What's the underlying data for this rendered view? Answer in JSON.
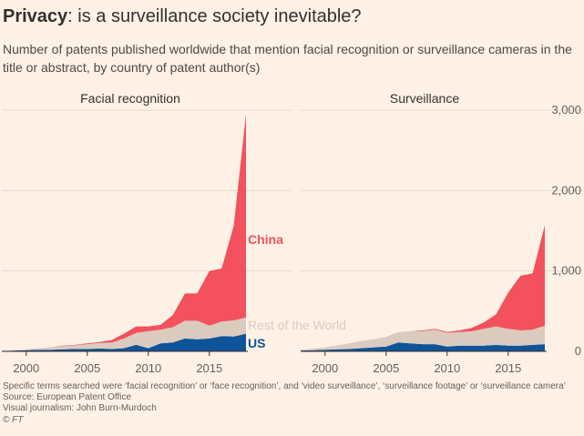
{
  "header": {
    "title_bold": "Privacy",
    "title_rest": ": is a surveillance society inevitable?",
    "subtitle": "Number of patents published worldwide that mention facial recognition or surveillance cameras in the title or abstract, by country of patent author(s)"
  },
  "footer": {
    "note": "Specific terms searched were ‘facial recognition’ or ‘face recognition’, and ‘video surveillance’, ‘surveillance footage’ or ‘surveillance camera’",
    "source": "Source: European Patent Office",
    "credit": "Visual journalism: John Burn-Murdoch",
    "brand": "© FT"
  },
  "colors": {
    "background": "#fff1e5",
    "China": "#f2515d",
    "Rest of the World": "#dbcbbf",
    "US": "#0f5499",
    "grid": "#e6d9ce",
    "axis_text": "#66605c"
  },
  "chart_data": [
    {
      "type": "area",
      "stacked": true,
      "title": "Facial recognition",
      "x": [
        1998,
        1999,
        2000,
        2001,
        2002,
        2003,
        2004,
        2005,
        2006,
        2007,
        2008,
        2009,
        2010,
        2011,
        2012,
        2013,
        2014,
        2015,
        2016,
        2017,
        2018
      ],
      "x_ticks": [
        "2000",
        "2005",
        "2010",
        "2015"
      ],
      "ylim": [
        0,
        3000
      ],
      "y_ticks": [
        0,
        1000,
        2000,
        3000
      ],
      "grid": true,
      "series": [
        {
          "name": "US",
          "values": [
            5,
            10,
            15,
            20,
            20,
            25,
            30,
            30,
            35,
            30,
            40,
            80,
            40,
            100,
            110,
            160,
            150,
            160,
            190,
            185,
            220
          ]
        },
        {
          "name": "Rest of the World",
          "values": [
            3,
            5,
            10,
            20,
            30,
            40,
            45,
            60,
            70,
            80,
            120,
            150,
            210,
            170,
            190,
            220,
            230,
            160,
            180,
            200,
            200
          ]
        },
        {
          "name": "China",
          "values": [
            0,
            0,
            0,
            0,
            0,
            5,
            5,
            10,
            10,
            30,
            60,
            80,
            60,
            60,
            150,
            340,
            340,
            680,
            660,
            1180,
            2530
          ]
        }
      ],
      "labels": [
        "China",
        "Rest of the World",
        "US"
      ]
    },
    {
      "type": "area",
      "stacked": true,
      "title": "Surveillance",
      "x": [
        1998,
        1999,
        2000,
        2001,
        2002,
        2003,
        2004,
        2005,
        2006,
        2007,
        2008,
        2009,
        2010,
        2011,
        2012,
        2013,
        2014,
        2015,
        2016,
        2017,
        2018
      ],
      "x_ticks": [
        "2000",
        "2005",
        "2010",
        "2015"
      ],
      "ylim": [
        0,
        3000
      ],
      "y_ticks": [
        0,
        1000,
        2000,
        3000
      ],
      "y_tick_labels": [
        "0",
        "1,000",
        "2,000",
        "3,000"
      ],
      "y_axis_side": "right",
      "grid": true,
      "series": [
        {
          "name": "US",
          "values": [
            10,
            15,
            20,
            25,
            30,
            40,
            50,
            60,
            110,
            100,
            90,
            90,
            60,
            70,
            70,
            70,
            80,
            70,
            70,
            80,
            90
          ]
        },
        {
          "name": "Rest of the World",
          "values": [
            10,
            20,
            30,
            50,
            70,
            90,
            100,
            120,
            130,
            150,
            160,
            180,
            170,
            170,
            180,
            210,
            230,
            210,
            190,
            190,
            230
          ]
        },
        {
          "name": "China",
          "values": [
            0,
            0,
            0,
            0,
            0,
            0,
            0,
            0,
            0,
            0,
            10,
            10,
            10,
            20,
            40,
            80,
            150,
            450,
            680,
            700,
            1250
          ]
        }
      ]
    }
  ]
}
